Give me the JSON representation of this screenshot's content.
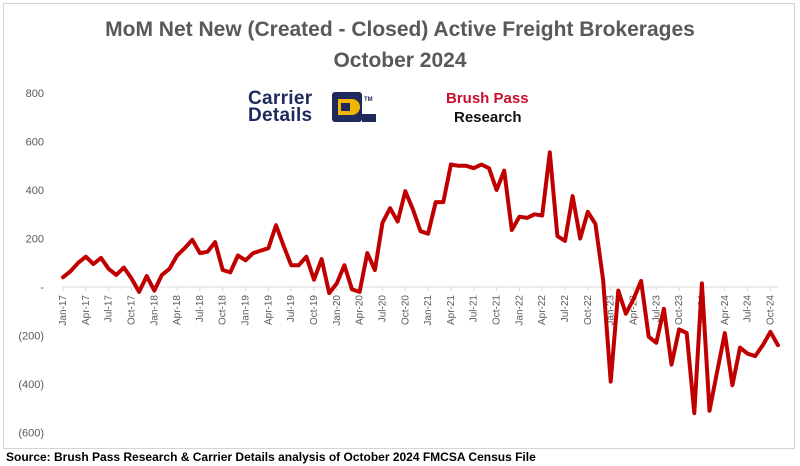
{
  "chart_data": {
    "type": "line",
    "title": "MoM Net New (Created - Closed) Active Freight Brokerages",
    "subtitle": "October 2024",
    "source": "Source: Brush Pass Research & Carrier Details analysis of October 2024 FMCSA Census File",
    "ylim": [
      -600,
      800
    ],
    "y_ticks": [
      800,
      600,
      400,
      200,
      0,
      -200,
      -400,
      -600
    ],
    "y_tick_labels": [
      "800",
      "600",
      "400",
      "200",
      "-",
      "(200)",
      "(400)",
      "(600)"
    ],
    "x_start": "Jan-17",
    "x_tick_labels": [
      "Jan-17",
      "Apr-17",
      "Jul-17",
      "Oct-17",
      "Jan-18",
      "Apr-18",
      "Jul-18",
      "Oct-18",
      "Jan-19",
      "Apr-19",
      "Jul-19",
      "Oct-19",
      "Jan-20",
      "Apr-20",
      "Jul-20",
      "Oct-20",
      "Jan-21",
      "Apr-21",
      "Jul-21",
      "Oct-21",
      "Jan-22",
      "Apr-22",
      "Jul-22",
      "Oct-22",
      "Jan-23",
      "Apr-23",
      "Jul-23",
      "Oct-23",
      "Jan-24",
      "Apr-24",
      "Jul-24",
      "Oct-24"
    ],
    "series": [
      {
        "color": "#c00000",
        "values": [
          40,
          65,
          100,
          125,
          95,
          120,
          75,
          50,
          80,
          35,
          -20,
          45,
          -15,
          50,
          75,
          130,
          160,
          195,
          140,
          145,
          185,
          70,
          60,
          130,
          110,
          140,
          150,
          160,
          255,
          170,
          90,
          90,
          125,
          30,
          115,
          -25,
          15,
          90,
          -10,
          -20,
          140,
          70,
          265,
          325,
          270,
          395,
          320,
          230,
          220,
          350,
          350,
          505,
          500,
          500,
          490,
          505,
          490,
          400,
          480,
          235,
          290,
          285,
          300,
          295,
          555,
          210,
          190,
          375,
          200,
          310,
          260,
          30,
          -390,
          -15,
          -110,
          -50,
          25,
          -205,
          -230,
          -90,
          -320,
          -175,
          -190,
          -520,
          15,
          -510,
          -350,
          -190,
          -405,
          -250,
          -275,
          -285,
          -240,
          -185,
          -240
        ]
      }
    ]
  },
  "logos": {
    "carrier_details": {
      "line1": "Carrier",
      "line2": "Details",
      "tm": "TM",
      "color": "#1f2a5c",
      "accent": "#f2b600"
    },
    "brush_pass": {
      "line1": "Brush Pass",
      "line2": "Research",
      "color": "#c8102e"
    }
  }
}
